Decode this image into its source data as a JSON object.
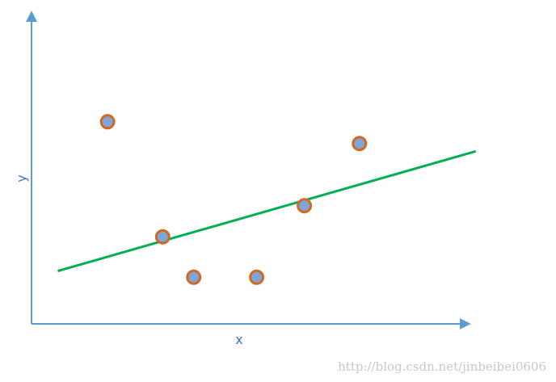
{
  "chart_data": {
    "type": "scatter",
    "title": "",
    "xlabel": "x",
    "ylabel": "y",
    "xlim": [
      0,
      100
    ],
    "ylim": [
      0,
      100
    ],
    "grid": false,
    "points": [
      {
        "x": 17.4,
        "y": 65.0
      },
      {
        "x": 30.0,
        "y": 28.0
      },
      {
        "x": 37.1,
        "y": 15.0
      },
      {
        "x": 51.5,
        "y": 15.0
      },
      {
        "x": 62.4,
        "y": 38.0
      },
      {
        "x": 75.0,
        "y": 58.0
      }
    ],
    "fit_line": {
      "x": [
        6.0,
        101.6
      ],
      "y": [
        17.0,
        55.5
      ]
    }
  },
  "colors": {
    "axis": "#5b9bd5",
    "axis_label": "#4472c4",
    "point_fill": "#7ea4d9",
    "point_stroke": "#d3691e",
    "fit_line": "#00b050",
    "watermark": "#c8c8c8"
  },
  "watermark": "http://blog.csdn.net/jinbeibei0606"
}
